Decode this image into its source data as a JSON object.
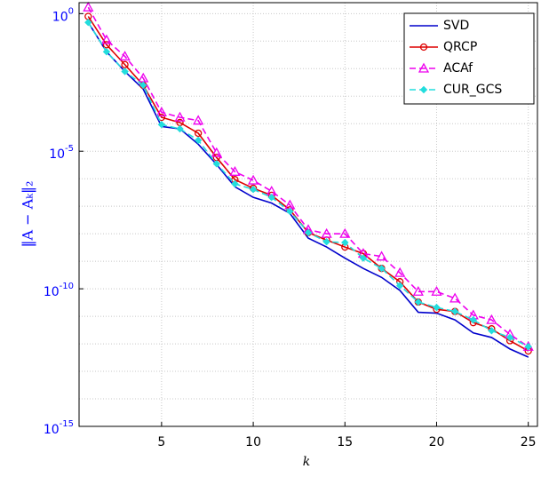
{
  "chart_data": {
    "type": "line",
    "x_label": "k",
    "y_label": "‖A − Aₖ‖₂",
    "x": [
      1,
      2,
      3,
      4,
      5,
      6,
      7,
      8,
      9,
      10,
      11,
      12,
      13,
      14,
      15,
      16,
      17,
      18,
      19,
      20,
      21,
      22,
      23,
      24,
      25
    ],
    "xlim": [
      0.5,
      25.5
    ],
    "xticks": [
      5,
      10,
      15,
      20,
      25
    ],
    "ylim": [
      1e-15,
      2.5
    ],
    "log_y": true,
    "yticks": [
      {
        "value": 1e-15,
        "label": "10^-15"
      },
      {
        "value": 1e-10,
        "label": "10^-10"
      },
      {
        "value": 1e-05,
        "label": "10^-5"
      },
      {
        "value": 1,
        "label": "10^0"
      }
    ],
    "y_minor_grid": [
      1e-14,
      1e-13,
      1e-12,
      1e-11,
      1e-09,
      1e-08,
      1e-07,
      1e-06,
      0.0001,
      0.001,
      0.01,
      0.1
    ],
    "grid": true,
    "legend": "top-right",
    "series": [
      {
        "name": "SVD",
        "color": "#0000cc",
        "marker": "none",
        "dash": false,
        "values": [
          0.48,
          0.041,
          0.0079,
          0.0018,
          7.9e-05,
          6.5e-05,
          1.8e-05,
          3.3e-06,
          5.1e-07,
          2.1e-07,
          1.3e-07,
          5.5e-08,
          6.9e-09,
          3.3e-09,
          1.3e-09,
          5.5e-10,
          2.6e-10,
          8.7e-11,
          1.4e-11,
          1.3e-11,
          7.4e-12,
          2.5e-12,
          1.7e-12,
          6.5e-13,
          3.3e-13
        ]
      },
      {
        "name": "QRCP",
        "color": "#dd0000",
        "marker": "circle",
        "dash": false,
        "values": [
          0.79,
          0.074,
          0.014,
          0.0025,
          0.00017,
          0.00011,
          4.5e-05,
          5.9e-06,
          9.3e-07,
          4.5e-07,
          2.5e-07,
          7.4e-08,
          1.1e-08,
          5.9e-09,
          3.3e-09,
          1.9e-09,
          5.5e-10,
          1.8e-10,
          3.3e-11,
          1.8e-11,
          1.5e-11,
          5.9e-12,
          3.5e-12,
          1.3e-12,
          5.5e-13
        ]
      },
      {
        "name": "ACAf",
        "color": "#ee00ee",
        "marker": "triangle",
        "dash": true,
        "values": [
          1.7,
          0.11,
          0.028,
          0.0045,
          0.00026,
          0.00017,
          0.00013,
          8.7e-06,
          1.8e-06,
          8.7e-07,
          3.5e-07,
          1.1e-07,
          1.4e-08,
          1e-08,
          1e-08,
          1.9e-09,
          1.5e-09,
          3.8e-10,
          7.9e-11,
          7.9e-11,
          4.5e-11,
          1.1e-11,
          7.4e-12,
          2.2e-12,
          7.9e-13
        ]
      },
      {
        "name": "CUR_GCS",
        "color": "#22dddd",
        "marker": "dot",
        "dash": true,
        "values": [
          0.48,
          0.041,
          0.0079,
          0.0025,
          9.3e-05,
          6.5e-05,
          2.5e-05,
          3.5e-06,
          6.5e-07,
          4.1e-07,
          2.1e-07,
          6.5e-08,
          1.1e-08,
          5.1e-09,
          4.8e-09,
          1.3e-09,
          5.5e-10,
          1.3e-10,
          3.3e-11,
          2.1e-11,
          1.5e-11,
          7.4e-12,
          3e-12,
          1.7e-12,
          7.9e-13
        ]
      }
    ]
  }
}
